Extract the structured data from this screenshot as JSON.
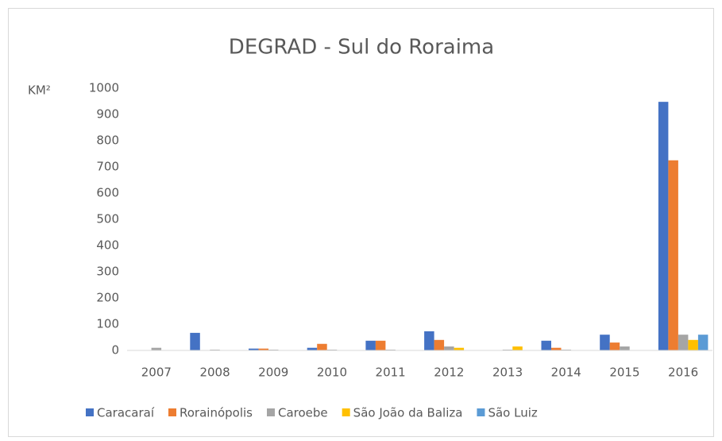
{
  "chart_data": {
    "type": "bar",
    "title": "DEGRAD - Sul do Roraima",
    "y_label": "KM²",
    "categories": [
      "2007",
      "2008",
      "2009",
      "2010",
      "2011",
      "2012",
      "2013",
      "2014",
      "2015",
      "2016"
    ],
    "series": [
      {
        "name": "Caracaraí",
        "color": "#4472c4",
        "values": [
          0,
          67,
          7,
          10,
          37,
          73,
          0,
          37,
          60,
          948
        ]
      },
      {
        "name": "Rorainópolis",
        "color": "#ed7d31",
        "values": [
          0,
          0,
          7,
          25,
          37,
          40,
          0,
          10,
          30,
          725
        ]
      },
      {
        "name": "Caroebe",
        "color": "#a5a5a5",
        "values": [
          10,
          3,
          3,
          3,
          3,
          15,
          3,
          3,
          15,
          60
        ]
      },
      {
        "name": "São João da Baliza",
        "color": "#ffc000",
        "values": [
          0,
          0,
          0,
          0,
          0,
          10,
          15,
          0,
          0,
          40
        ]
      },
      {
        "name": "São Luiz",
        "color": "#5b9bd5",
        "values": [
          0,
          0,
          0,
          0,
          0,
          0,
          0,
          0,
          0,
          60
        ]
      }
    ],
    "ylim": [
      0,
      1000
    ],
    "yticks": [
      0,
      100,
      200,
      300,
      400,
      500,
      600,
      700,
      800,
      900,
      1000
    ],
    "grid": false,
    "legend": "bottom"
  }
}
